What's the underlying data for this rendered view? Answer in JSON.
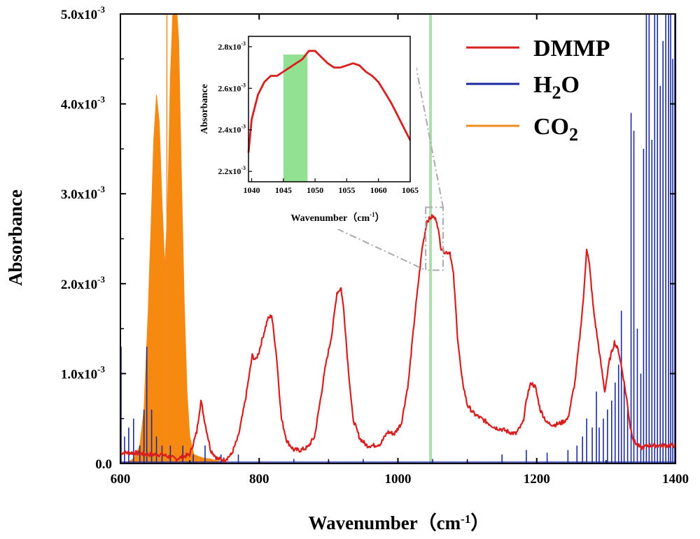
{
  "chart_data": {
    "type": "line",
    "xlabel": "Wavenumber（cm",
    "xlabel_sup": "-1",
    "xlabel_end": "）",
    "ylabel": "Absorbance",
    "xlim": [
      600,
      1400
    ],
    "ylim": [
      0,
      0.005
    ],
    "x_ticks": [
      "600",
      "800",
      "1000",
      "1200",
      "1400"
    ],
    "y_ticks": [
      {
        "mantissa": "0.0",
        "exp": ""
      },
      {
        "mantissa": "1.0x10",
        "exp": "-3"
      },
      {
        "mantissa": "2.0x10",
        "exp": "-3"
      },
      {
        "mantissa": "3.0x10",
        "exp": "-3"
      },
      {
        "mantissa": "4.0x10",
        "exp": "-3"
      },
      {
        "mantissa": "5.0x10",
        "exp": "-3"
      }
    ],
    "legend_position": "top-right",
    "highlight_band": {
      "x": [
        1045,
        1049
      ],
      "color": "#9fd69f"
    },
    "series": [
      {
        "name": "DMMP",
        "name_parts": [
          {
            "t": "DMMP",
            "sub": false
          }
        ],
        "color": "#d81e1e",
        "x": [
          600,
          620,
          640,
          660,
          680,
          700,
          710,
          716,
          722,
          730,
          740,
          750,
          760,
          770,
          780,
          790,
          795,
          800,
          805,
          812,
          818,
          825,
          832,
          840,
          850,
          860,
          870,
          880,
          890,
          896,
          905,
          912,
          918,
          922,
          928,
          935,
          945,
          955,
          965,
          975,
          985,
          995,
          1005,
          1015,
          1025,
          1035,
          1042,
          1050,
          1056,
          1062,
          1068,
          1075,
          1080,
          1086,
          1092,
          1100,
          1110,
          1120,
          1130,
          1140,
          1150,
          1160,
          1170,
          1180,
          1187,
          1192,
          1198,
          1205,
          1215,
          1225,
          1235,
          1245,
          1255,
          1262,
          1268,
          1272,
          1276,
          1282,
          1290,
          1298,
          1305,
          1312,
          1318,
          1325,
          1330,
          1335,
          1340,
          1350,
          1360,
          1380,
          1400
        ],
        "y": [
          0.00012,
          0.00012,
          0.0001,
          0.0001,
          5e-05,
          0.0001,
          0.00035,
          0.0007,
          0.00045,
          0.00015,
          5e-05,
          4e-05,
          0.0001,
          0.0003,
          0.0007,
          0.0012,
          0.00115,
          0.00125,
          0.0014,
          0.0016,
          0.00165,
          0.0012,
          0.0005,
          0.00025,
          0.00015,
          0.00015,
          0.00018,
          0.0003,
          0.0008,
          0.0011,
          0.00145,
          0.0019,
          0.00195,
          0.0017,
          0.0011,
          0.0005,
          0.00028,
          0.0002,
          0.0002,
          0.00022,
          0.00035,
          0.00033,
          0.00045,
          0.0009,
          0.0017,
          0.0024,
          0.0027,
          0.00275,
          0.0027,
          0.0024,
          0.00235,
          0.00235,
          0.0021,
          0.0014,
          0.00095,
          0.00065,
          0.00055,
          0.0005,
          0.00045,
          0.0004,
          0.00038,
          0.00035,
          0.00033,
          0.00045,
          0.00078,
          0.0009,
          0.00085,
          0.0006,
          0.00045,
          0.00043,
          0.00045,
          0.0005,
          0.0009,
          0.0014,
          0.0019,
          0.0024,
          0.0022,
          0.0017,
          0.00125,
          0.0008,
          0.00115,
          0.00135,
          0.00125,
          0.00095,
          0.0007,
          0.0004,
          0.00025,
          0.00017,
          0.0002,
          0.0002,
          0.0002
        ]
      },
      {
        "name": "H2O",
        "name_parts": [
          {
            "t": "H",
            "sub": false
          },
          {
            "t": "2",
            "sub": true
          },
          {
            "t": "O",
            "sub": false
          }
        ],
        "color": "#1c2aa0",
        "type": "stick",
        "x": [
          601,
          606,
          612,
          619,
          628,
          634,
          638,
          645,
          652,
          660,
          672,
          690,
          705,
          722,
          745,
          770,
          800,
          850,
          900,
          950,
          1000,
          1050,
          1100,
          1150,
          1185,
          1215,
          1245,
          1258,
          1266,
          1272,
          1280,
          1286,
          1290,
          1296,
          1302,
          1308,
          1313,
          1318,
          1322,
          1326,
          1331,
          1336,
          1340,
          1345,
          1350,
          1354,
          1358,
          1362,
          1366,
          1370,
          1374,
          1378,
          1382,
          1386,
          1390,
          1393,
          1396,
          1399
        ],
        "y": [
          0.0013,
          0.0003,
          0.0004,
          0.0005,
          0.0002,
          0.0006,
          0.0013,
          0.0006,
          0.0003,
          0.0002,
          0.0002,
          0.0002,
          0.0001,
          0.0002,
          0.0001,
          0.0001,
          5e-05,
          5e-05,
          5e-05,
          5e-05,
          5e-05,
          5e-05,
          5e-05,
          0.0001,
          0.00015,
          0.00012,
          0.00015,
          0.0002,
          0.0003,
          0.0005,
          0.0004,
          0.0008,
          0.0004,
          0.0005,
          0.0006,
          0.0007,
          0.0009,
          0.0011,
          0.0017,
          0.0009,
          0.0006,
          0.0039,
          0.0037,
          0.0015,
          0.001,
          0.0035,
          0.005,
          0.0053,
          0.0036,
          0.005,
          0.0053,
          0.0042,
          0.0047,
          0.0053,
          0.0052,
          0.0053,
          0.0045,
          0.0053
        ]
      },
      {
        "name": "CO2",
        "name_parts": [
          {
            "t": "CO",
            "sub": false
          },
          {
            "t": "2",
            "sub": true
          }
        ],
        "color": "#f28b1c",
        "fill": "#f68a10",
        "type": "filled",
        "x": [
          600,
          612,
          620,
          628,
          634,
          640,
          644,
          648,
          652,
          656,
          660,
          664,
          668,
          672,
          676,
          680,
          684,
          688,
          692,
          696,
          700,
          706,
          712,
          720,
          730,
          740,
          748,
          760,
          800,
          900,
          1000,
          1100,
          1200,
          1300,
          1400
        ],
        "y": [
          0,
          2e-05,
          6e-05,
          0.0002,
          0.0006,
          0.0017,
          0.0026,
          0.0036,
          0.0041,
          0.0038,
          0.0029,
          0.0022,
          0.0028,
          0.0043,
          0.0051,
          0.0052,
          0.0047,
          0.0032,
          0.0018,
          0.0008,
          0.0003,
          0.0001,
          8e-05,
          6e-05,
          5e-05,
          3e-05,
          1e-05,
          0,
          0,
          0,
          0,
          0,
          0,
          0,
          0
        ]
      }
    ],
    "inset": {
      "xlabel": "Wavenumber（cm",
      "xlabel_sup": "-1",
      "xlabel_end": "）",
      "ylabel": "Absorbance",
      "xlim": [
        1039.5,
        1065
      ],
      "ylim": [
        0.00215,
        0.00285
      ],
      "x_ticks": [
        1040,
        1045,
        1050,
        1055,
        1060,
        1065
      ],
      "y_ticks": [
        {
          "value": 0.0022,
          "mantissa": "2.2x10",
          "exp": "-3"
        },
        {
          "value": 0.0024,
          "mantissa": "2.4x10",
          "exp": "-3"
        },
        {
          "value": 0.0026,
          "mantissa": "2.6x10",
          "exp": "-3"
        },
        {
          "value": 0.0028,
          "mantissa": "2.8x10",
          "exp": "-3"
        }
      ],
      "highlight_band": [
        1045,
        1048.8
      ],
      "series_x": [
        1039.5,
        1040,
        1041,
        1042,
        1043,
        1044,
        1045,
        1046,
        1047,
        1048,
        1049,
        1049.5,
        1050,
        1051,
        1052,
        1053,
        1054,
        1055,
        1056,
        1057,
        1058,
        1059,
        1060,
        1061,
        1062,
        1063,
        1064,
        1065
      ],
      "series_y": [
        0.00229,
        0.00245,
        0.00257,
        0.00263,
        0.00266,
        0.00266,
        0.00268,
        0.0027,
        0.00272,
        0.00274,
        0.00278,
        0.00278,
        0.00278,
        0.00275,
        0.00272,
        0.0027,
        0.0027,
        0.00271,
        0.00272,
        0.00271,
        0.00268,
        0.00266,
        0.00263,
        0.00258,
        0.00253,
        0.00247,
        0.00241,
        0.00235
      ]
    }
  }
}
